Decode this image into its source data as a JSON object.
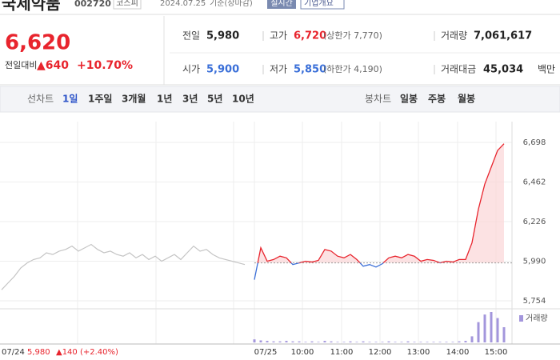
{
  "header": {
    "name": "국제약품",
    "code": "002720",
    "market": "코스피",
    "date": "2024.07.25",
    "basis": "기준(장마감)",
    "realtime": "실시간",
    "company": "기업개요"
  },
  "price": {
    "current": "6,620",
    "change_label": "전일대비",
    "change": "▲640",
    "change_rate": "+10.70%"
  },
  "stats": [
    {
      "label": "전일",
      "value": "5,980"
    },
    {
      "label": "고가",
      "value": "6,720",
      "note": "(상한가 7,770)"
    },
    {
      "label": "거래량",
      "value": "7,061,617"
    },
    {
      "label": "시가",
      "value": "5,900"
    },
    {
      "label": "저가",
      "value": "5,850",
      "note": "(하한가 4,190)"
    },
    {
      "label": "거래대금",
      "value": "45,034",
      "unit": "백만"
    }
  ],
  "tabs": {
    "line_label": "선차트",
    "line_periods": [
      "1일",
      "1주일",
      "3개월",
      "1년",
      "3년",
      "5년",
      "10년"
    ],
    "candle_label": "봉차트",
    "candle_periods": [
      "일봉",
      "주봉",
      "월봉"
    ]
  },
  "chart_data": {
    "type": "line",
    "ylim": [
      5754,
      6698
    ],
    "yticks": [
      {
        "value": 6698,
        "label": "6,698"
      },
      {
        "value": 6462,
        "label": "6,462"
      },
      {
        "value": 6226,
        "label": "6,226"
      },
      {
        "value": 5990,
        "label": "5,990"
      },
      {
        "value": 5754,
        "label": "5,754"
      }
    ],
    "base": 5980,
    "up_color": "#e8242d",
    "down_color": "#3a6fd8",
    "prev_color": "#c4c4c4",
    "volume_color": "#a396dc",
    "x_labels": [
      "07/25",
      "10:00",
      "11:00",
      "12:00",
      "13:00",
      "14:00",
      "15:00"
    ],
    "prev_day": {
      "date": "07/24",
      "close": "5,980",
      "change": "▲140 (+2.40%)"
    },
    "prev_values": [
      5820,
      5860,
      5900,
      5950,
      5980,
      6000,
      6010,
      6040,
      6030,
      6050,
      6060,
      6080,
      6050,
      6070,
      6090,
      6060,
      6040,
      6050,
      6030,
      6020,
      6040,
      6010,
      6030,
      6000,
      6020,
      5990,
      6010,
      6030,
      6000,
      6040,
      6080,
      6050,
      6060,
      6030,
      6010,
      6000,
      5990,
      5980,
      5970
    ],
    "values": [
      5880,
      6070,
      5990,
      6000,
      6020,
      6010,
      5970,
      5980,
      5990,
      5985,
      5995,
      6060,
      6050,
      6020,
      6010,
      6030,
      6000,
      5960,
      5970,
      5955,
      5975,
      6010,
      6020,
      6010,
      6030,
      6020,
      5990,
      6000,
      5995,
      5980,
      5990,
      5985,
      6000,
      6000,
      6100,
      6300,
      6450,
      6550,
      6650,
      6690
    ],
    "volume_label": "거래량",
    "volume": [
      6,
      4,
      3,
      2,
      2,
      3,
      2,
      2,
      1,
      2,
      1,
      3,
      2,
      1,
      1,
      2,
      1,
      2,
      1,
      1,
      1,
      2,
      1,
      1,
      2,
      1,
      1,
      1,
      1,
      1,
      1,
      1,
      2,
      3,
      12,
      40,
      55,
      60,
      48,
      30
    ]
  }
}
